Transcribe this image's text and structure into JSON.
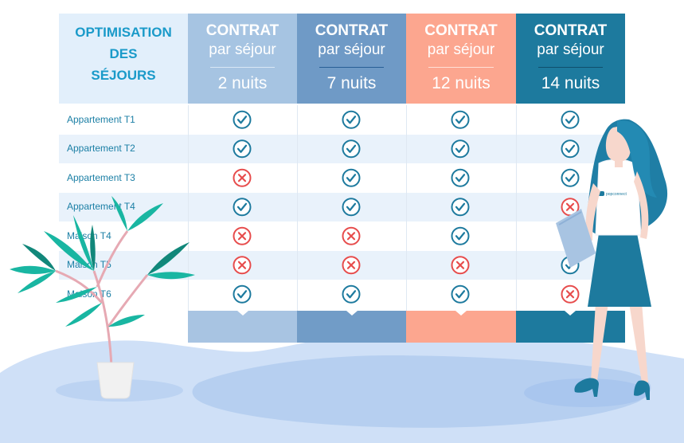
{
  "header": {
    "title_lines": [
      "OPTIMISATION",
      "DES",
      "SÉJOURS"
    ],
    "plans": [
      {
        "title": "CONTRAT",
        "subtitle": "par séjour",
        "nights": "2 nuits",
        "color": "#a6c4e2",
        "foot_color": "#a8c4e2"
      },
      {
        "title": "CONTRAT",
        "subtitle": "par séjour",
        "nights": "7 nuits",
        "color": "#6f9ac6",
        "foot_color": "#719cc7"
      },
      {
        "title": "CONTRAT",
        "subtitle": "par séjour",
        "nights": "12 nuits",
        "color": "#fca68f",
        "foot_color": "#fca68f"
      },
      {
        "title": "CONTRAT",
        "subtitle": "par séjour",
        "nights": "14 nuits",
        "color": "#1d7a9e",
        "foot_color": "#1d7a9e"
      }
    ]
  },
  "rows": [
    {
      "label": "Appartement T1",
      "values": [
        true,
        true,
        true,
        true
      ]
    },
    {
      "label": "Appartement T2",
      "values": [
        true,
        true,
        true,
        true
      ]
    },
    {
      "label": "Appartement T3",
      "values": [
        false,
        true,
        true,
        true
      ]
    },
    {
      "label": "Appartement T4",
      "values": [
        true,
        true,
        true,
        false
      ]
    },
    {
      "label": "Maison T4",
      "values": [
        false,
        false,
        true,
        true
      ]
    },
    {
      "label": "Maison T5",
      "values": [
        false,
        false,
        false,
        true
      ]
    },
    {
      "label": "Maison T6",
      "values": [
        true,
        true,
        true,
        false
      ]
    }
  ],
  "colors": {
    "check": "#1d7a9e",
    "cross": "#e74c4c",
    "row_alt": "#e9f2fb",
    "label_text": "#1b7fa5",
    "title_text": "#1a9ac9"
  },
  "badge": {
    "brand": "popconnect"
  }
}
